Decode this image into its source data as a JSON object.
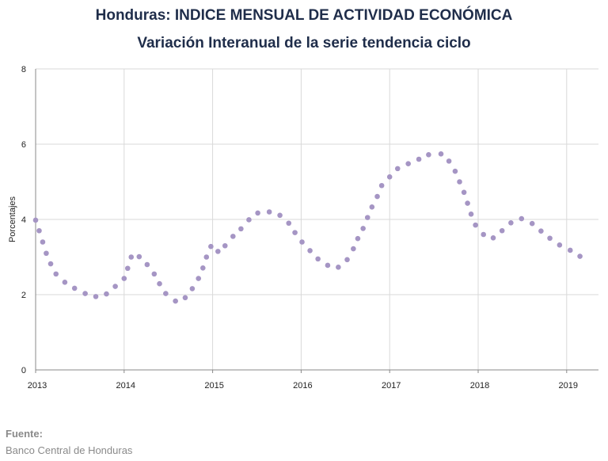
{
  "chart_data": {
    "type": "scatter",
    "title": "Honduras: INDICE MENSUAL DE ACTIVIDAD ECONÓMICA",
    "subtitle": "Variación Interanual de la serie tendencia ciclo",
    "xlabel": "",
    "ylabel": "Porcentajes",
    "xlim": [
      2013,
      2019.5
    ],
    "ylim": [
      0,
      8
    ],
    "x_ticks": [
      "2013",
      "2014",
      "2015",
      "2016",
      "2017",
      "2018",
      "2019"
    ],
    "y_ticks": [
      "0",
      "2",
      "4",
      "6",
      "8"
    ],
    "grid": true,
    "legend": "none",
    "color": "#a595c4",
    "series": [
      {
        "points": [
          [
            2013.0,
            3.98
          ],
          [
            2013.04,
            3.7
          ],
          [
            2013.08,
            3.4
          ],
          [
            2013.12,
            3.1
          ],
          [
            2013.17,
            2.82
          ],
          [
            2013.23,
            2.55
          ],
          [
            2013.33,
            2.33
          ],
          [
            2013.44,
            2.17
          ],
          [
            2013.56,
            2.03
          ],
          [
            2013.68,
            1.95
          ],
          [
            2013.8,
            2.02
          ],
          [
            2013.9,
            2.22
          ],
          [
            2014.0,
            2.43
          ],
          [
            2014.04,
            2.7
          ],
          [
            2014.08,
            3.0
          ],
          [
            2014.17,
            3.01
          ],
          [
            2014.26,
            2.8
          ],
          [
            2014.34,
            2.55
          ],
          [
            2014.4,
            2.29
          ],
          [
            2014.47,
            2.03
          ],
          [
            2014.58,
            1.83
          ],
          [
            2014.69,
            1.92
          ],
          [
            2014.77,
            2.16
          ],
          [
            2014.84,
            2.43
          ],
          [
            2014.89,
            2.71
          ],
          [
            2014.93,
            3.0
          ],
          [
            2014.98,
            3.28
          ],
          [
            2015.06,
            3.15
          ],
          [
            2015.14,
            3.3
          ],
          [
            2015.23,
            3.55
          ],
          [
            2015.32,
            3.75
          ],
          [
            2015.41,
            3.99
          ],
          [
            2015.51,
            4.17
          ],
          [
            2015.64,
            4.2
          ],
          [
            2015.76,
            4.11
          ],
          [
            2015.86,
            3.9
          ],
          [
            2015.93,
            3.65
          ],
          [
            2016.01,
            3.4
          ],
          [
            2016.1,
            3.17
          ],
          [
            2016.19,
            2.95
          ],
          [
            2016.3,
            2.78
          ],
          [
            2016.42,
            2.73
          ],
          [
            2016.52,
            2.93
          ],
          [
            2016.59,
            3.22
          ],
          [
            2016.64,
            3.49
          ],
          [
            2016.7,
            3.76
          ],
          [
            2016.75,
            4.05
          ],
          [
            2016.8,
            4.33
          ],
          [
            2016.86,
            4.61
          ],
          [
            2016.91,
            4.9
          ],
          [
            2017.0,
            5.13
          ],
          [
            2017.09,
            5.35
          ],
          [
            2017.21,
            5.48
          ],
          [
            2017.33,
            5.6
          ],
          [
            2017.44,
            5.72
          ],
          [
            2017.58,
            5.74
          ],
          [
            2017.67,
            5.55
          ],
          [
            2017.74,
            5.28
          ],
          [
            2017.79,
            5.0
          ],
          [
            2017.84,
            4.72
          ],
          [
            2017.88,
            4.43
          ],
          [
            2017.92,
            4.14
          ],
          [
            2017.97,
            3.85
          ],
          [
            2018.06,
            3.6
          ],
          [
            2018.17,
            3.51
          ],
          [
            2018.27,
            3.7
          ],
          [
            2018.37,
            3.91
          ],
          [
            2018.49,
            4.02
          ],
          [
            2018.61,
            3.89
          ],
          [
            2018.71,
            3.69
          ],
          [
            2018.81,
            3.5
          ],
          [
            2018.92,
            3.32
          ],
          [
            2019.04,
            3.18
          ],
          [
            2019.15,
            3.02
          ]
        ]
      }
    ]
  },
  "source": {
    "label": "Fuente:",
    "value": "Banco Central de Honduras"
  }
}
